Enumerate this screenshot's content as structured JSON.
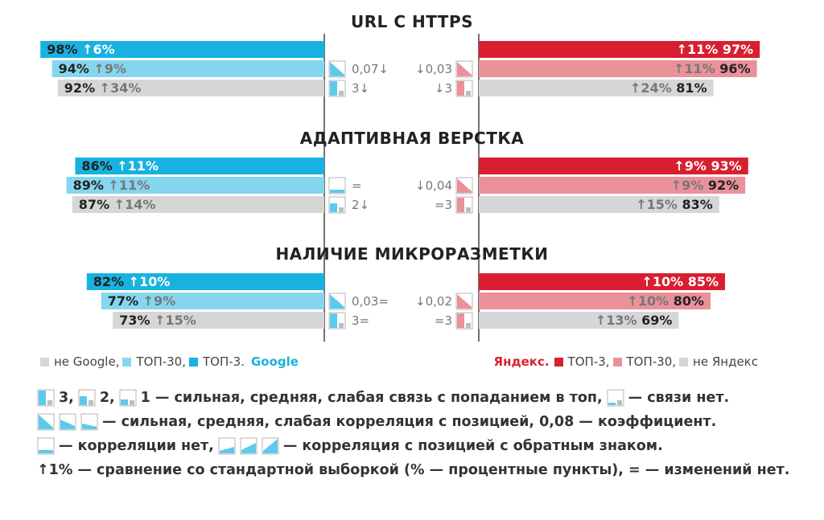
{
  "colors": {
    "google_top3": "#18b2e1",
    "google_top30": "#86d6f0",
    "not_google": "#d6d6d6",
    "yandex_top3": "#d81f30",
    "yandex_top30": "#ea919a",
    "not_yandex": "#d6d6d6",
    "delta_on_dark": "#ffffff",
    "delta_on_light": "#777777",
    "icon_blue": "#5ccaec",
    "icon_red": "#ea919a"
  },
  "chart_data": {
    "type": "bar",
    "layout": "mirrored-horizontal",
    "series": [
      {
        "name": "не Google",
        "engine": "google",
        "tier": "not"
      },
      {
        "name": "ТОП-30",
        "engine": "google",
        "tier": "top30"
      },
      {
        "name": "ТОП-3",
        "engine": "google",
        "tier": "top3"
      },
      {
        "name": "ТОП-3",
        "engine": "yandex",
        "tier": "top3"
      },
      {
        "name": "ТОП-30",
        "engine": "yandex",
        "tier": "top30"
      },
      {
        "name": "не Яндекс",
        "engine": "yandex",
        "tier": "not"
      }
    ],
    "sections": [
      {
        "title": "URL С HTTPS",
        "google": {
          "top3": {
            "value": 98,
            "value_label": "98%",
            "delta": "↑6%"
          },
          "top30": {
            "value": 94,
            "value_label": "94%",
            "delta": "↑9%"
          },
          "not": {
            "value": 92,
            "value_label": "92%",
            "delta": "↑34%"
          },
          "corr": {
            "icon": "corr-strong",
            "label": "0,07↓"
          },
          "link": {
            "icon": "link-strong",
            "label": "3↓"
          }
        },
        "yandex": {
          "top3": {
            "value": 97,
            "value_label": "97%",
            "delta": "↑11%"
          },
          "top30": {
            "value": 96,
            "value_label": "96%",
            "delta": "↑11%"
          },
          "not": {
            "value": 81,
            "value_label": "81%",
            "delta": "↑24%"
          },
          "corr": {
            "icon": "corr-strong",
            "label": "↓0,03"
          },
          "link": {
            "icon": "link-strong",
            "label": "↓3"
          }
        }
      },
      {
        "title": "АДАПТИВНАЯ ВЕРСТКА",
        "google": {
          "top3": {
            "value": 86,
            "value_label": "86%",
            "delta": "↑11%"
          },
          "top30": {
            "value": 89,
            "value_label": "89%",
            "delta": "↑11%"
          },
          "not": {
            "value": 87,
            "value_label": "87%",
            "delta": "↑14%"
          },
          "corr": {
            "icon": "corr-none",
            "label": "="
          },
          "link": {
            "icon": "link-medium",
            "label": "2↓"
          }
        },
        "yandex": {
          "top3": {
            "value": 93,
            "value_label": "93%",
            "delta": "↑9%"
          },
          "top30": {
            "value": 92,
            "value_label": "92%",
            "delta": "↑9%"
          },
          "not": {
            "value": 83,
            "value_label": "83%",
            "delta": "↑15%"
          },
          "corr": {
            "icon": "corr-strong",
            "label": "↓0,04"
          },
          "link": {
            "icon": "link-strong",
            "label": "=3"
          }
        }
      },
      {
        "title": "НАЛИЧИЕ МИКРОРАЗМЕТКИ",
        "google": {
          "top3": {
            "value": 82,
            "value_label": "82%",
            "delta": "↑10%"
          },
          "top30": {
            "value": 77,
            "value_label": "77%",
            "delta": "↑9%"
          },
          "not": {
            "value": 73,
            "value_label": "73%",
            "delta": "↑15%"
          },
          "corr": {
            "icon": "corr-strong",
            "label": "0,03="
          },
          "link": {
            "icon": "link-strong",
            "label": "3="
          }
        },
        "yandex": {
          "top3": {
            "value": 85,
            "value_label": "85%",
            "delta": "↑10%"
          },
          "top30": {
            "value": 80,
            "value_label": "80%",
            "delta": "↑10%"
          },
          "not": {
            "value": 69,
            "value_label": "69%",
            "delta": "↑13%"
          },
          "corr": {
            "icon": "corr-strong",
            "label": "↓0,02"
          },
          "link": {
            "icon": "link-strong",
            "label": "=3"
          }
        }
      }
    ]
  },
  "legend": {
    "google": {
      "items": [
        {
          "label": "не Google,",
          "color": "#d6d6d6"
        },
        {
          "label": "ТОП-30,",
          "color": "#86d6f0"
        },
        {
          "label": "ТОП-3.",
          "color": "#18b2e1"
        }
      ],
      "brand": "Google"
    },
    "yandex": {
      "brand": "Яндекс.",
      "items": [
        {
          "label": "ТОП-3,",
          "color": "#d81f30"
        },
        {
          "label": "ТОП-30,",
          "color": "#ea919a"
        },
        {
          "label": "не Яндекс",
          "color": "#d6d6d6"
        }
      ]
    }
  },
  "notes": {
    "line1": {
      "t1": "3,",
      "t2": "2,",
      "t3": "1 — сильная, средняя, слабая связь с попаданием в топ,",
      "t4": "— связи нет."
    },
    "line2": {
      "t1": "— сильная, средняя, слабая корреляция с позицией, 0,08 — коэффициент."
    },
    "line3": {
      "t1": "— корреляции нет,",
      "t2": "— корреляция с позицией с обратным знаком."
    },
    "line4": {
      "t1": "↑1% — сравнение со стандартной выборкой (% — процентные пункты), = — изменений нет."
    }
  }
}
